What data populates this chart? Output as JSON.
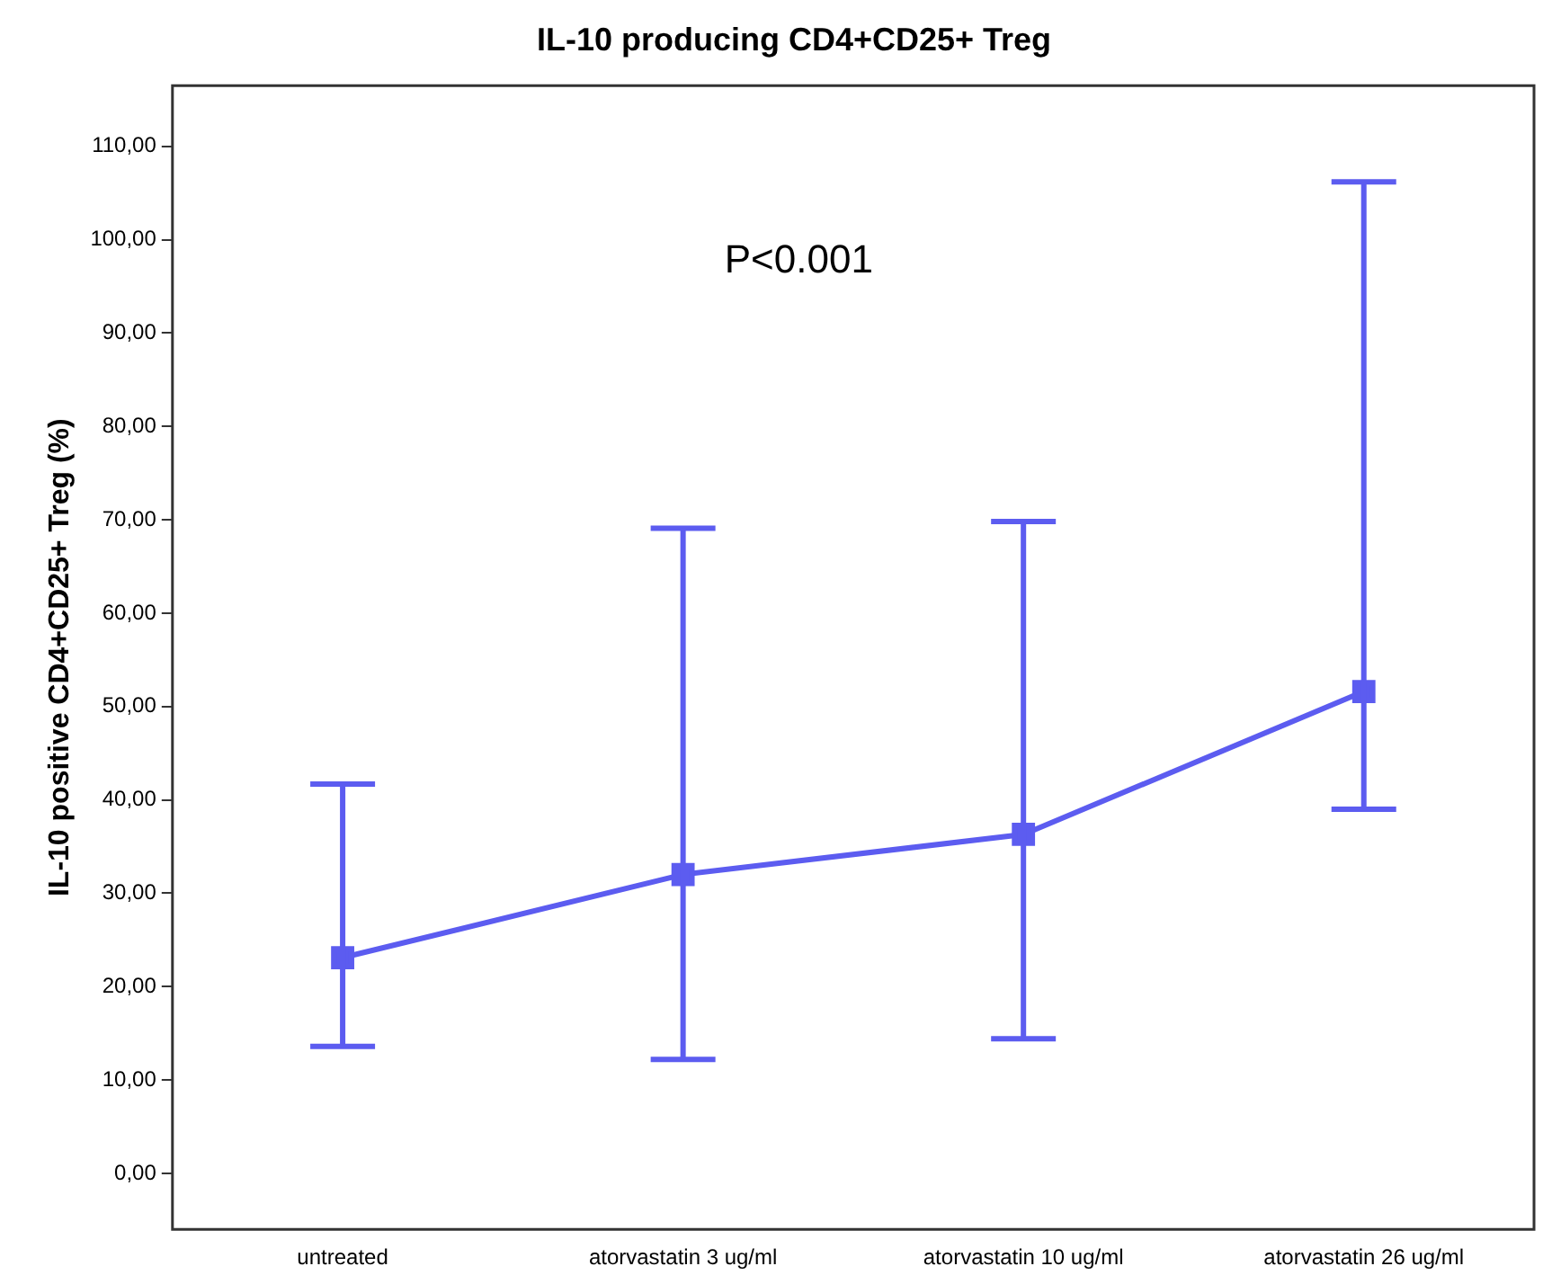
{
  "chart_data": {
    "type": "line",
    "title": "IL-10 producing CD4+CD25+ Treg",
    "ylabel": "IL-10 positive CD4+CD25+ Treg (%)",
    "annotations": [
      "P<0.001"
    ],
    "categories": [
      "untreated",
      "atorvastatin 3 ug/ml",
      "atorvastatin 10 ug/ml",
      "atorvastatin 26 ug/ml"
    ],
    "series": [
      {
        "color": "#5c5cf0",
        "values": [
          23.1,
          32.0,
          36.3,
          51.6
        ],
        "errors": [
          [
            13.6,
            41.7
          ],
          [
            12.2,
            69.1
          ],
          [
            14.4,
            69.8
          ],
          [
            39.0,
            106.2
          ]
        ]
      }
    ],
    "ylim": [
      -6,
      116.5
    ],
    "yticks": [
      {
        "value": 0,
        "label": "0,00"
      },
      {
        "value": 10,
        "label": "10,00"
      },
      {
        "value": 20,
        "label": "20,00"
      },
      {
        "value": 30,
        "label": "30,00"
      },
      {
        "value": 40,
        "label": "40,00"
      },
      {
        "value": 50,
        "label": "50,00"
      },
      {
        "value": 60,
        "label": "60,00"
      },
      {
        "value": 70,
        "label": "70,00"
      },
      {
        "value": 80,
        "label": "80,00"
      },
      {
        "value": 90,
        "label": "90,00"
      },
      {
        "value": 100,
        "label": "100,00"
      },
      {
        "value": 110,
        "label": "110,00"
      }
    ],
    "grid": false,
    "legend": false,
    "marker": "square",
    "line_style": "solid"
  }
}
